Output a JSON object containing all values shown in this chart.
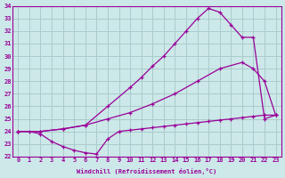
{
  "xlabel": "Windchill (Refroidissement éolien,°C)",
  "bg_color": "#cce8e8",
  "line_color": "#990099",
  "grid_color": "#aacccc",
  "xlim": [
    -0.5,
    23.5
  ],
  "ylim": [
    22,
    34
  ],
  "xticks": [
    0,
    1,
    2,
    3,
    4,
    5,
    6,
    7,
    8,
    9,
    10,
    11,
    12,
    13,
    14,
    15,
    16,
    17,
    18,
    19,
    20,
    21,
    22,
    23
  ],
  "yticks": [
    22,
    23,
    24,
    25,
    26,
    27,
    28,
    29,
    30,
    31,
    32,
    33,
    34
  ],
  "curve1_x": [
    0,
    1,
    2,
    3,
    4,
    5,
    6,
    7,
    8,
    9,
    10,
    11,
    12,
    13,
    14,
    15,
    16,
    17,
    18,
    19,
    20,
    21,
    22,
    23
  ],
  "curve1_y": [
    24.0,
    24.0,
    23.8,
    23.2,
    22.8,
    22.5,
    22.3,
    22.2,
    23.4,
    24.0,
    24.1,
    24.2,
    24.3,
    24.4,
    24.5,
    24.6,
    24.7,
    24.8,
    24.9,
    25.0,
    25.1,
    25.2,
    25.3,
    25.3
  ],
  "curve2_x": [
    0,
    2,
    4,
    6,
    8,
    10,
    12,
    14,
    16,
    18,
    20,
    21,
    22,
    23
  ],
  "curve2_y": [
    24.0,
    24.0,
    24.2,
    24.5,
    25.0,
    25.5,
    26.2,
    27.0,
    28.0,
    29.0,
    29.5,
    29.0,
    28.0,
    25.3
  ],
  "curve3_x": [
    0,
    2,
    4,
    6,
    8,
    10,
    11,
    12,
    13,
    14,
    15,
    16,
    17,
    18,
    19,
    20,
    21,
    22,
    23
  ],
  "curve3_y": [
    24.0,
    24.0,
    24.2,
    24.5,
    26.0,
    27.5,
    28.3,
    29.2,
    30.0,
    31.0,
    32.0,
    33.0,
    33.8,
    33.5,
    32.5,
    31.5,
    31.5,
    25.0,
    25.3
  ]
}
